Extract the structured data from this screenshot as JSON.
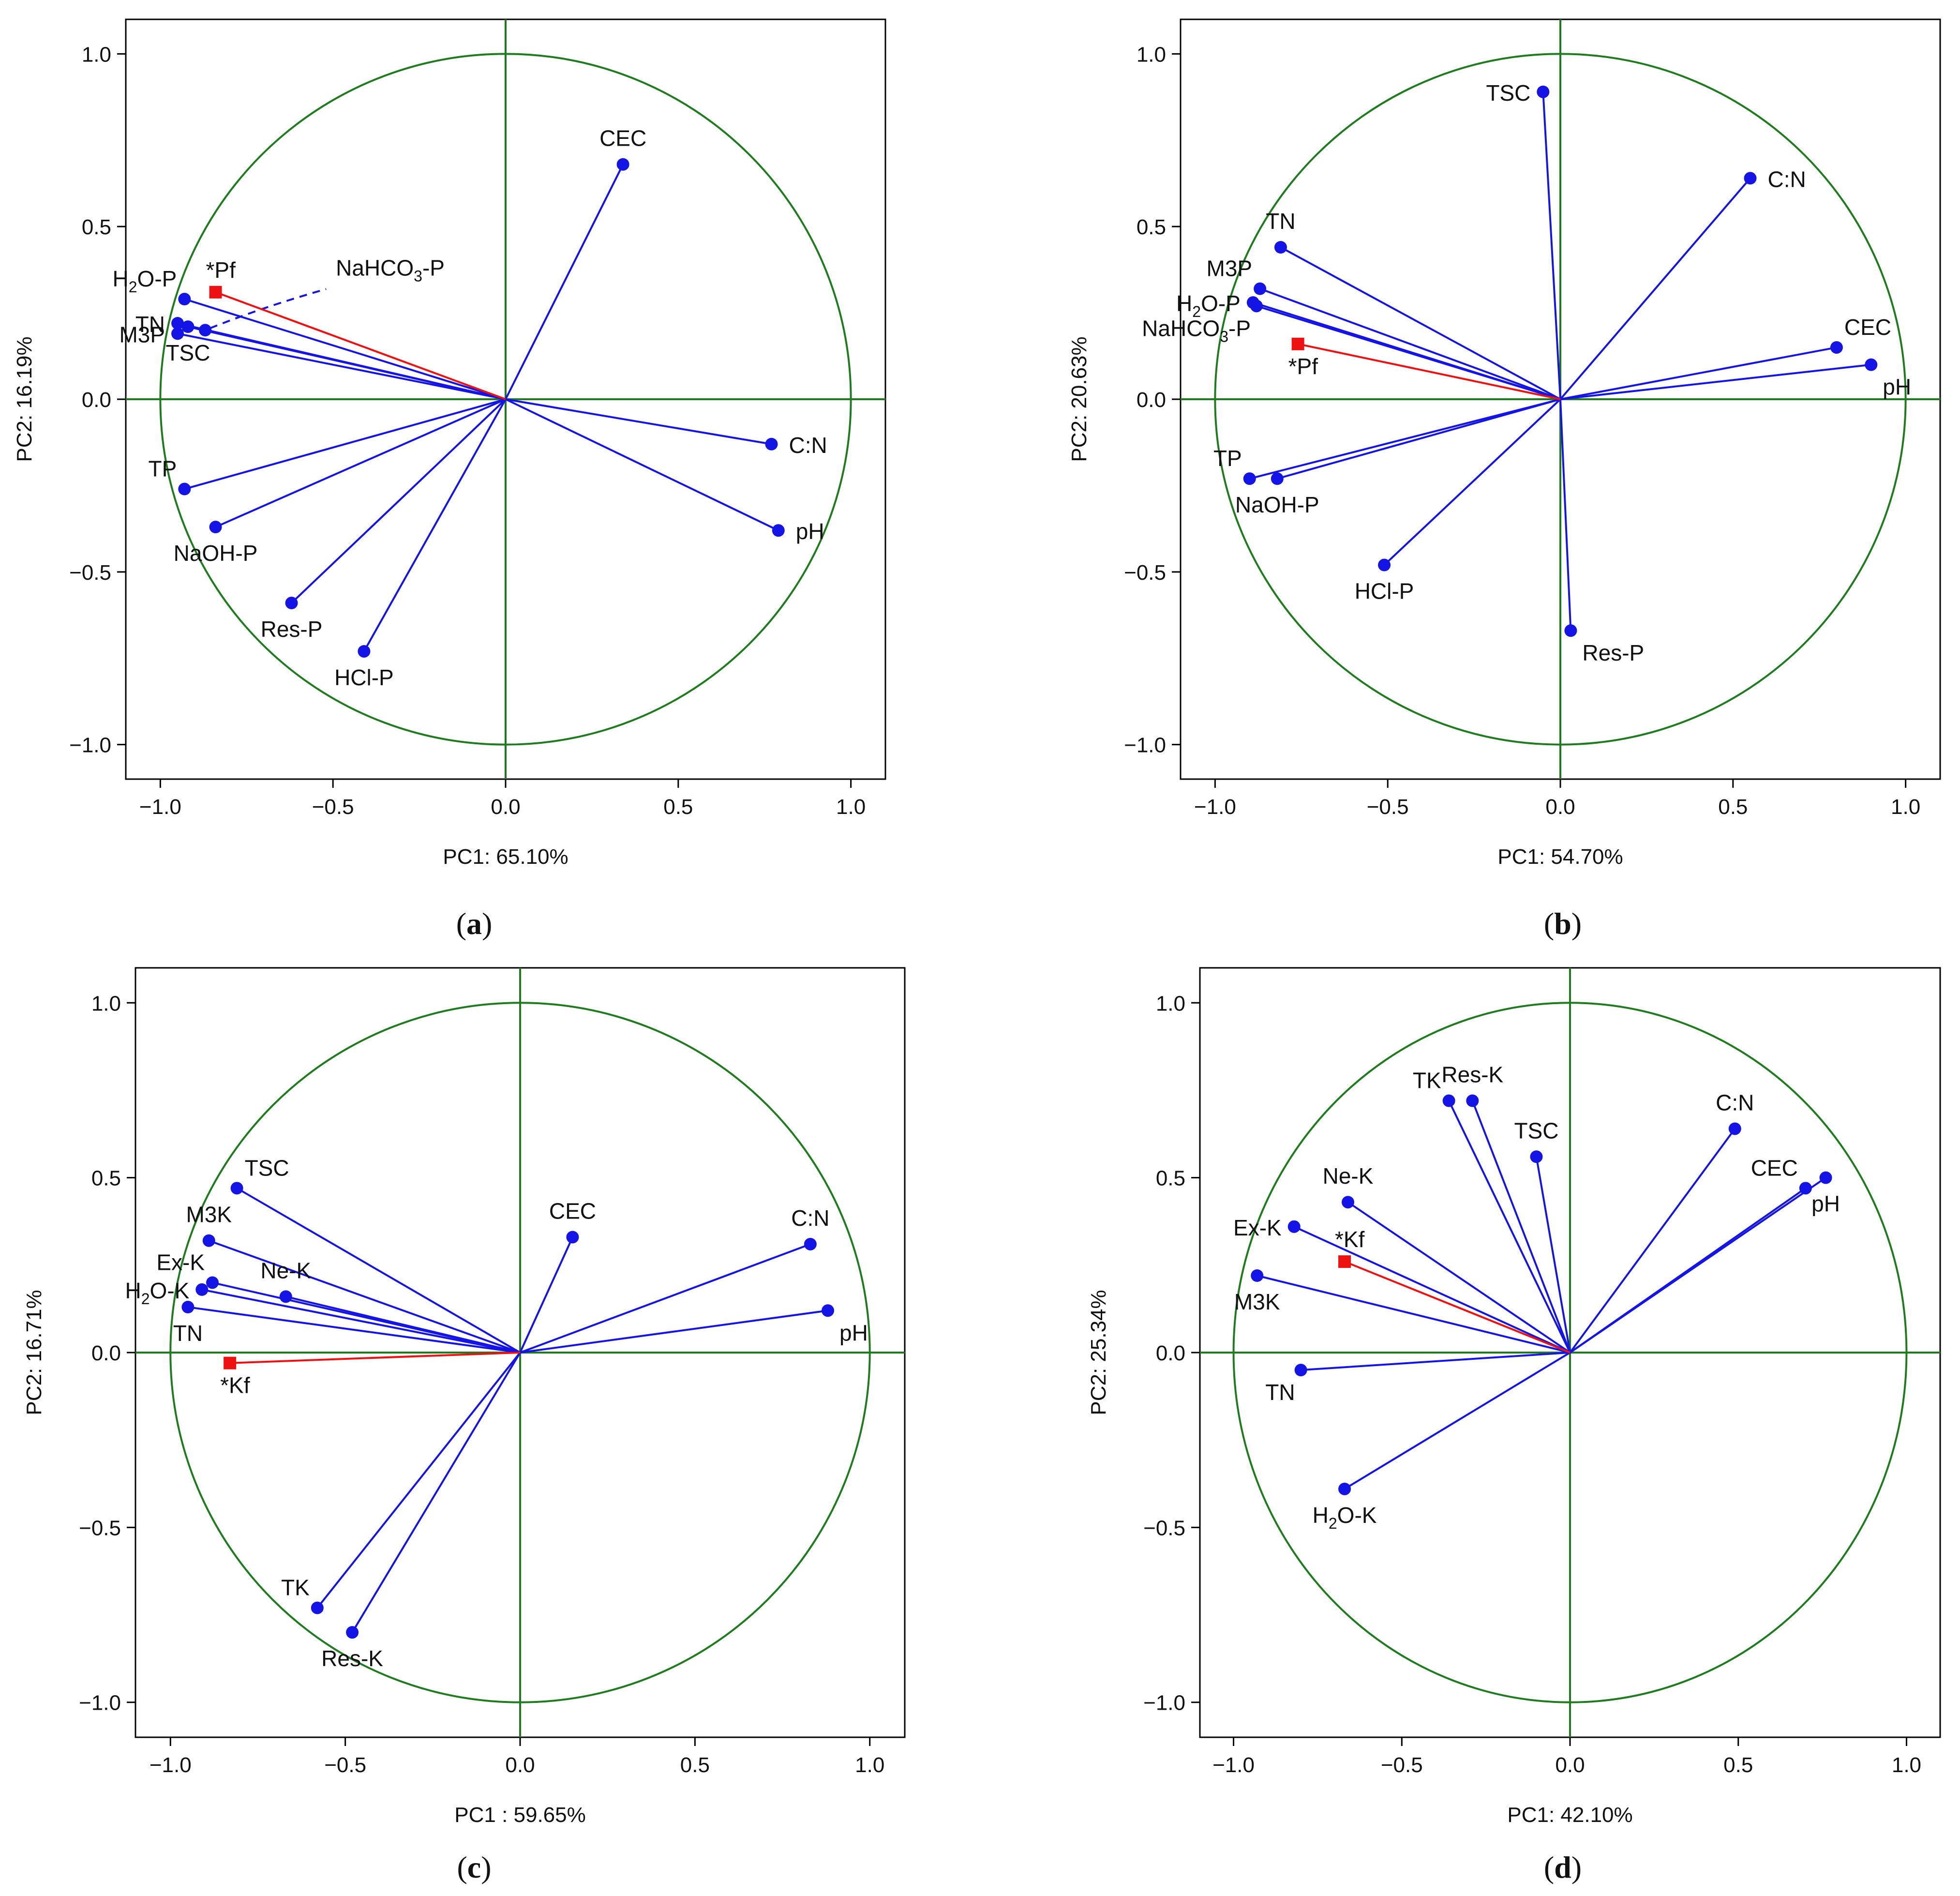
{
  "colors": {
    "circle": "#1e7b1e",
    "vector": "#1414e6",
    "supplementary": "#ee1111",
    "frame": "#000000"
  },
  "chart_data": [
    {
      "type": "scatter",
      "subtype": "pca-correlation-circle",
      "panel": "a",
      "xlabel": "PC1: 65.10%",
      "ylabel": "PC2: 16.19%",
      "xlim": [
        -1.1,
        1.1
      ],
      "ylim": [
        -1.1,
        1.1
      ],
      "xticks": [
        "−1.0",
        "−0.5",
        "0.0",
        "0.5",
        "1.0"
      ],
      "yticks": [
        "1.0",
        "0.5",
        "0.0",
        "−0.5",
        "−1.0"
      ],
      "variables": [
        {
          "label": "CEC",
          "x": 0.34,
          "y": 0.68,
          "anchor": "above"
        },
        {
          "label": "C:N",
          "x": 0.77,
          "y": -0.13,
          "anchor": "right"
        },
        {
          "label": "pH",
          "x": 0.79,
          "y": -0.38,
          "anchor": "right"
        },
        {
          "label": "H2O-P",
          "x": -0.93,
          "y": 0.29,
          "anchor": "above-left"
        },
        {
          "label": "TN",
          "x": -0.95,
          "y": 0.22,
          "anchor": "left"
        },
        {
          "label": "M3P",
          "x": -0.95,
          "y": 0.19,
          "anchor": "left"
        },
        {
          "label": "NaHCO3-P",
          "x": -0.87,
          "y": 0.2,
          "anchor": "dashed-callout"
        },
        {
          "label": "TSC",
          "x": -0.92,
          "y": 0.21,
          "anchor": "below"
        },
        {
          "label": "TP",
          "x": -0.93,
          "y": -0.26,
          "anchor": "above-left"
        },
        {
          "label": "NaOH-P",
          "x": -0.84,
          "y": -0.37,
          "anchor": "below"
        },
        {
          "label": "Res-P",
          "x": -0.62,
          "y": -0.59,
          "anchor": "below"
        },
        {
          "label": "HCl-P",
          "x": -0.41,
          "y": -0.73,
          "anchor": "below"
        }
      ],
      "supplementary": {
        "label": "*Pf",
        "x": -0.84,
        "y": 0.31
      },
      "caption": "a"
    },
    {
      "type": "scatter",
      "subtype": "pca-correlation-circle",
      "panel": "b",
      "xlabel": "PC1: 54.70%",
      "ylabel": "PC2: 20.63%",
      "xlim": [
        -1.1,
        1.1
      ],
      "ylim": [
        -1.1,
        1.1
      ],
      "xticks": [
        "−1.0",
        "−0.5",
        "0.0",
        "0.5",
        "1.0"
      ],
      "yticks": [
        "1.0",
        "0.5",
        "0.0",
        "−0.5",
        "−1.0"
      ],
      "variables": [
        {
          "label": "TSC",
          "x": -0.05,
          "y": 0.89,
          "anchor": "left"
        },
        {
          "label": "C:N",
          "x": 0.55,
          "y": 0.64,
          "anchor": "right"
        },
        {
          "label": "TN",
          "x": -0.81,
          "y": 0.44,
          "anchor": "above"
        },
        {
          "label": "M3P",
          "x": -0.87,
          "y": 0.32,
          "anchor": "above-left"
        },
        {
          "label": "H2O-P",
          "x": -0.89,
          "y": 0.28,
          "anchor": "left"
        },
        {
          "label": "NaHCO3-P",
          "x": -0.88,
          "y": 0.27,
          "anchor": "below-left"
        },
        {
          "label": "CEC",
          "x": 0.8,
          "y": 0.15,
          "anchor": "above-right"
        },
        {
          "label": "pH",
          "x": 0.9,
          "y": 0.1,
          "anchor": "below-right"
        },
        {
          "label": "TP",
          "x": -0.9,
          "y": -0.23,
          "anchor": "above-left"
        },
        {
          "label": "NaOH-P",
          "x": -0.82,
          "y": -0.23,
          "anchor": "below"
        },
        {
          "label": "HCl-P",
          "x": -0.51,
          "y": -0.48,
          "anchor": "below"
        },
        {
          "label": "Res-P",
          "x": 0.03,
          "y": -0.67,
          "anchor": "below-right"
        }
      ],
      "supplementary": {
        "label": "*Pf",
        "x": -0.76,
        "y": 0.16
      },
      "caption": "b"
    },
    {
      "type": "scatter",
      "subtype": "pca-correlation-circle",
      "panel": "c",
      "xlabel": "PC1 : 59.65%",
      "ylabel": "PC2: 16.71%",
      "xlim": [
        -1.1,
        1.1
      ],
      "ylim": [
        -1.1,
        1.1
      ],
      "xticks": [
        "−1.0",
        "−0.5",
        "0.0",
        "0.5",
        "1.0"
      ],
      "yticks": [
        "1.0",
        "0.5",
        "0.0",
        "−0.5",
        "−1.0"
      ],
      "variables": [
        {
          "label": "TSC",
          "x": -0.81,
          "y": 0.47,
          "anchor": "above-right"
        },
        {
          "label": "CEC",
          "x": 0.15,
          "y": 0.33,
          "anchor": "above"
        },
        {
          "label": "C:N",
          "x": 0.83,
          "y": 0.31,
          "anchor": "above"
        },
        {
          "label": "M3K",
          "x": -0.89,
          "y": 0.32,
          "anchor": "above"
        },
        {
          "label": "Ex-K",
          "x": -0.88,
          "y": 0.2,
          "anchor": "above-left"
        },
        {
          "label": "H2O-K",
          "x": -0.91,
          "y": 0.18,
          "anchor": "left"
        },
        {
          "label": "Ne-K",
          "x": -0.67,
          "y": 0.16,
          "anchor": "above"
        },
        {
          "label": "TN",
          "x": -0.95,
          "y": 0.13,
          "anchor": "below"
        },
        {
          "label": "pH",
          "x": 0.88,
          "y": 0.12,
          "anchor": "below-right"
        },
        {
          "label": "TK",
          "x": -0.58,
          "y": -0.73,
          "anchor": "above-left"
        },
        {
          "label": "Res-K",
          "x": -0.48,
          "y": -0.8,
          "anchor": "below"
        }
      ],
      "supplementary": {
        "label": "*Kf",
        "x": -0.83,
        "y": -0.03
      },
      "caption": "c"
    },
    {
      "type": "scatter",
      "subtype": "pca-correlation-circle",
      "panel": "d",
      "xlabel": "PC1: 42.10%",
      "ylabel": "PC2: 25.34%",
      "xlim": [
        -1.1,
        1.1
      ],
      "ylim": [
        -1.1,
        1.1
      ],
      "xticks": [
        "−1.0",
        "−0.5",
        "0.0",
        "0.5",
        "1.0"
      ],
      "yticks": [
        "1.0",
        "0.5",
        "0.0",
        "−0.5",
        "−1.0"
      ],
      "variables": [
        {
          "label": "TK",
          "x": -0.36,
          "y": 0.72,
          "anchor": "above-left"
        },
        {
          "label": "Res-K",
          "x": -0.29,
          "y": 0.72,
          "anchor": "above"
        },
        {
          "label": "TSC",
          "x": -0.1,
          "y": 0.56,
          "anchor": "above"
        },
        {
          "label": "C:N",
          "x": 0.49,
          "y": 0.64,
          "anchor": "above"
        },
        {
          "label": "CEC",
          "x": 0.7,
          "y": 0.47,
          "anchor": "above-left"
        },
        {
          "label": "pH",
          "x": 0.76,
          "y": 0.5,
          "anchor": "below"
        },
        {
          "label": "Ne-K",
          "x": -0.66,
          "y": 0.43,
          "anchor": "above"
        },
        {
          "label": "Ex-K",
          "x": -0.82,
          "y": 0.36,
          "anchor": "left"
        },
        {
          "label": "M3K",
          "x": -0.93,
          "y": 0.22,
          "anchor": "below"
        },
        {
          "label": "TN",
          "x": -0.8,
          "y": -0.05,
          "anchor": "below-left"
        },
        {
          "label": "H2O-K",
          "x": -0.67,
          "y": -0.39,
          "anchor": "below"
        }
      ],
      "supplementary": {
        "label": "*Kf",
        "x": -0.67,
        "y": 0.26
      },
      "caption": "d"
    }
  ]
}
